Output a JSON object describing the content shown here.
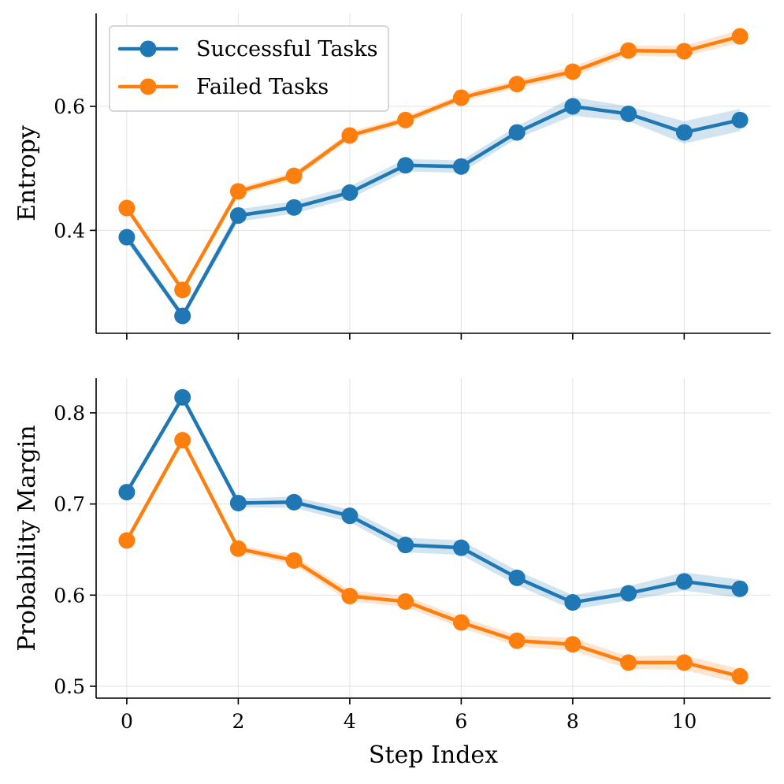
{
  "chart_data": [
    {
      "type": "line",
      "ylabel": "Entropy",
      "xlabel": "",
      "xlim": [
        -0.55,
        11.55
      ],
      "ylim": [
        0.234,
        0.75
      ],
      "xticks": [
        0,
        2,
        4,
        6,
        8,
        10
      ],
      "yticks": [
        0.4,
        0.6
      ],
      "ytick_labels": [
        "0.4",
        "0.6"
      ],
      "grid": true,
      "legend": "upper-left",
      "x": [
        0,
        1,
        2,
        3,
        4,
        5,
        6,
        7,
        8,
        9,
        10,
        11
      ],
      "series": [
        {
          "name": "Successful Tasks",
          "color": "#1f77b4",
          "values": [
            0.389,
            0.262,
            0.424,
            0.437,
            0.461,
            0.505,
            0.503,
            0.558,
            0.6,
            0.588,
            0.558,
            0.578
          ],
          "band": [
            0.008,
            0.006,
            0.01,
            0.01,
            0.01,
            0.01,
            0.01,
            0.01,
            0.015,
            0.012,
            0.018,
            0.018
          ]
        },
        {
          "name": "Failed Tasks",
          "color": "#ff7f0e",
          "values": [
            0.436,
            0.304,
            0.463,
            0.488,
            0.553,
            0.578,
            0.614,
            0.636,
            0.656,
            0.69,
            0.689,
            0.713
          ],
          "band": [
            0.005,
            0.004,
            0.006,
            0.006,
            0.006,
            0.006,
            0.006,
            0.007,
            0.008,
            0.008,
            0.009,
            0.01
          ]
        }
      ]
    },
    {
      "type": "line",
      "ylabel": "Probability Margin",
      "xlabel": "Step Index",
      "xlim": [
        -0.55,
        11.55
      ],
      "ylim": [
        0.487,
        0.838
      ],
      "xticks": [
        0,
        2,
        4,
        6,
        8,
        10
      ],
      "xtick_labels": [
        "0",
        "2",
        "4",
        "6",
        "8",
        "10"
      ],
      "yticks": [
        0.5,
        0.6,
        0.7,
        0.8
      ],
      "ytick_labels": [
        "0.5",
        "0.6",
        "0.7",
        "0.8"
      ],
      "grid": true,
      "x": [
        0,
        1,
        2,
        3,
        4,
        5,
        6,
        7,
        8,
        9,
        10,
        11
      ],
      "series": [
        {
          "name": "Successful Tasks",
          "color": "#1f77b4",
          "values": [
            0.713,
            0.817,
            0.701,
            0.702,
            0.687,
            0.655,
            0.652,
            0.619,
            0.592,
            0.602,
            0.615,
            0.607
          ],
          "band": [
            0.004,
            0.004,
            0.005,
            0.006,
            0.007,
            0.008,
            0.008,
            0.008,
            0.008,
            0.008,
            0.01,
            0.01
          ]
        },
        {
          "name": "Failed Tasks",
          "color": "#ff7f0e",
          "values": [
            0.66,
            0.77,
            0.651,
            0.638,
            0.599,
            0.593,
            0.57,
            0.55,
            0.546,
            0.526,
            0.526,
            0.511
          ],
          "band": [
            0.003,
            0.003,
            0.004,
            0.005,
            0.006,
            0.006,
            0.006,
            0.006,
            0.007,
            0.007,
            0.008,
            0.008
          ]
        }
      ]
    }
  ]
}
